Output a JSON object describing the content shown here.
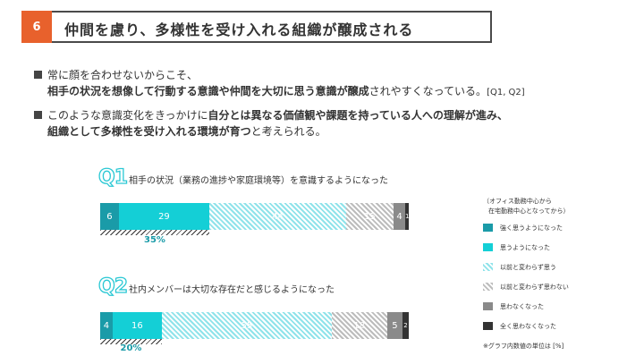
{
  "header": {
    "number": "6",
    "title": "仲間を慮り、多様性を受け入れる組織が醸成される"
  },
  "bullets": [
    {
      "line1": "常に顔を合わせないからこそ、",
      "line2_bold": "相手の状況を想像して行動する意識や仲間を大切に思う意識が醸成",
      "line2_rest": "されやすくなっている。",
      "line2_ref": "[Q1, Q2]"
    },
    {
      "line1_pre": "このような意識変化をきっかけに",
      "line1_bold": "自分とは異なる価値観や課題を持っている人への理解が進み、",
      "line2_bold": "組織として多様性を受け入れる環境が育つ",
      "line2_rest": "と考えられる。"
    }
  ],
  "legend": {
    "header_line1": "（オフィス勤務中心から",
    "header_line2": "在宅勤務中心となってから）",
    "note": "※グラフ内数値の単位は [%]"
  },
  "colors": {
    "accent": "#e8612c",
    "strong_agree": "#1a9ba8",
    "agree": "#14cfd6",
    "unchanged_agree": "#8fe3ea",
    "unchanged_disagree": "#bcbcbc",
    "disagree": "#8a8a8a",
    "strong_disagree": "#333333"
  },
  "chart_data": {
    "type": "bar",
    "orientation": "horizontal-stacked-100",
    "series": [
      {
        "name": "強く思うようになった",
        "values": [
          6,
          4
        ]
      },
      {
        "name": "思うようになった",
        "values": [
          29,
          16
        ]
      },
      {
        "name": "以前と変わらず思う",
        "values": [
          44,
          55
        ]
      },
      {
        "name": "以前と変わらず思わない",
        "values": [
          15,
          18
        ]
      },
      {
        "name": "思わなくなった",
        "values": [
          4,
          5
        ]
      },
      {
        "name": "全く思わなくなった",
        "values": [
          1,
          2
        ]
      }
    ],
    "rows": [
      {
        "tag": "Q1",
        "question": "相手の状況（業務の進捗や家庭環境等）を意識するようになった",
        "labels": [
          "6",
          "29",
          "44",
          "15",
          "4",
          "1"
        ],
        "positive_total": "35%"
      },
      {
        "tag": "Q2",
        "question": "社内メンバーは大切な存在だと感じるようになった",
        "labels": [
          "4",
          "16",
          "55",
          "18",
          "5",
          "2"
        ],
        "positive_total": "20%"
      }
    ],
    "unit": "%",
    "xlim": [
      0,
      100
    ]
  }
}
